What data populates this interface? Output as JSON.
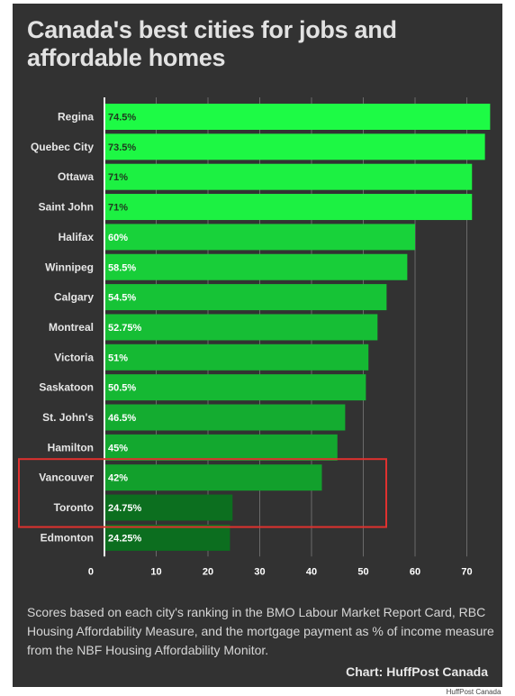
{
  "title": "Canada's best cities for jobs and affordable homes",
  "note": "Scores based on each city's ranking in the BMO Labour Market Report Card, RBC Housing Affordability Measure, and the mortgage payment as % of income measure from the NBF Housing Affordability Monitor.",
  "credit": "Chart: HuffPost Canada",
  "source": "HuffPost Canada",
  "colors": {
    "background": "#323232",
    "bar_high": "#1dfb45",
    "bar_low": "#0c6e1f",
    "highlight_box": "#e0312f",
    "grid": "#6a6a6a"
  },
  "chart_data": {
    "type": "bar",
    "orientation": "horizontal",
    "categories": [
      "Regina",
      "Quebec City",
      "Ottawa",
      "Saint John",
      "Halifax",
      "Winnipeg",
      "Calgary",
      "Montreal",
      "Victoria",
      "Saskatoon",
      "St. John's",
      "Hamilton",
      "Vancouver",
      "Toronto",
      "Edmonton"
    ],
    "values": [
      74.5,
      73.5,
      71,
      71,
      60,
      58.5,
      54.5,
      52.75,
      51,
      50.5,
      46.5,
      45,
      42,
      24.75,
      24.25
    ],
    "labels": [
      "74.5%",
      "73.5%",
      "71%",
      "71%",
      "60%",
      "58.5%",
      "54.5%",
      "52.75%",
      "51%",
      "50.5%",
      "46.5%",
      "45%",
      "42%",
      "24.75%",
      "24.25%"
    ],
    "xticks": [
      0,
      10,
      20,
      30,
      40,
      50,
      60,
      70
    ],
    "xlim": [
      0,
      75
    ],
    "grid": true,
    "highlighted": [
      "Vancouver",
      "Toronto"
    ],
    "xlabel": "",
    "ylabel": ""
  }
}
